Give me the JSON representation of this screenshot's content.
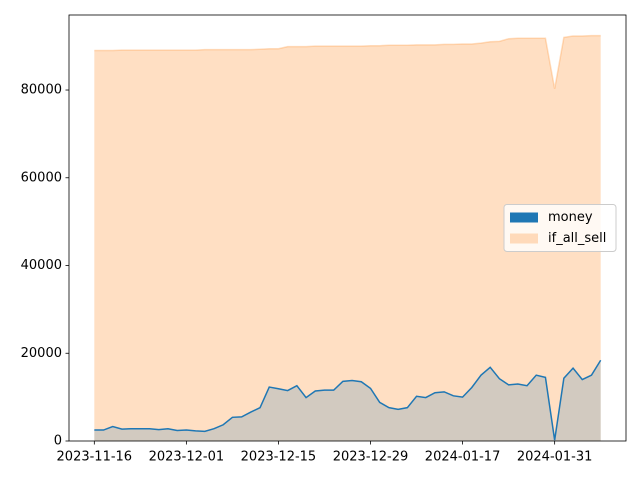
{
  "chart_data": {
    "type": "area",
    "categories": [
      "2023-11-16",
      null,
      null,
      null,
      null,
      null,
      null,
      null,
      null,
      null,
      "2023-12-01",
      null,
      null,
      null,
      null,
      null,
      null,
      null,
      null,
      null,
      "2023-12-15",
      null,
      null,
      null,
      null,
      null,
      null,
      null,
      null,
      null,
      "2023-12-29",
      null,
      null,
      null,
      null,
      null,
      null,
      null,
      null,
      null,
      "2024-01-17",
      null,
      null,
      null,
      null,
      null,
      null,
      null,
      null,
      null,
      "2024-01-31",
      null,
      null,
      null,
      null,
      null
    ],
    "series": [
      {
        "name": "money",
        "color": "#1f77b4",
        "values": [
          2500,
          2500,
          3300,
          2700,
          2800,
          2800,
          2800,
          2600,
          2800,
          2400,
          2500,
          2300,
          2200,
          2800,
          3700,
          5400,
          5500,
          6600,
          7600,
          12300,
          11900,
          11500,
          12600,
          9900,
          11400,
          11600,
          11600,
          13600,
          13800,
          13500,
          12000,
          8800,
          7600,
          7200,
          7600,
          10200,
          9900,
          11000,
          11200,
          10300,
          10000,
          12200,
          15000,
          16800,
          14200,
          12800,
          13000,
          12600,
          15000,
          14500,
          200,
          14300,
          16600,
          14000,
          15000,
          18400
        ]
      },
      {
        "name": "if_all_sell",
        "color": "#ff7f0e",
        "values": [
          89000,
          89000,
          89000,
          89100,
          89100,
          89100,
          89100,
          89100,
          89100,
          89100,
          89100,
          89100,
          89200,
          89200,
          89200,
          89200,
          89200,
          89200,
          89300,
          89400,
          89400,
          89900,
          89900,
          89900,
          90000,
          90000,
          90000,
          90000,
          90000,
          90000,
          90100,
          90100,
          90200,
          90200,
          90200,
          90300,
          90300,
          90300,
          90400,
          90400,
          90500,
          90500,
          90700,
          91000,
          91100,
          91700,
          91800,
          91800,
          91800,
          91800,
          80300,
          92000,
          92300,
          92300,
          92400,
          92400
        ]
      }
    ],
    "ylim": [
      0,
      97100
    ],
    "yticks": [
      0,
      20000,
      40000,
      60000,
      80000
    ],
    "legend": "center right"
  }
}
